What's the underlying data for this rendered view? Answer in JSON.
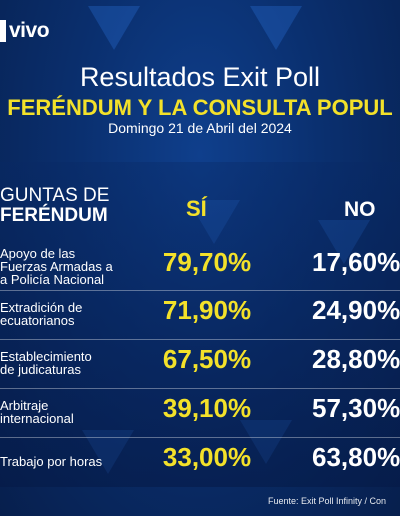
{
  "brand": {
    "logo_text": "vivo"
  },
  "header": {
    "title": "Resultados Exit Poll",
    "subtitle": "FERÉNDUM Y LA CONSULTA POPUL",
    "date": "Domingo 21 de Abril del 2024"
  },
  "table": {
    "question_header_line1": "GUNTAS DE",
    "question_header_line2": "FERÉNDUM",
    "col_si": "SÍ",
    "col_no": "NO",
    "rows": [
      {
        "question_lines": [
          "Apoyo de las",
          "Fuerzas Armadas a",
          "a Policía Nacional"
        ],
        "si": "79,70%",
        "no": "17,60%"
      },
      {
        "question_lines": [
          "Extradición de",
          "ecuatorianos"
        ],
        "si": "71,90%",
        "no": "24,90%"
      },
      {
        "question_lines": [
          "Establecimiento",
          "de judicaturas"
        ],
        "si": "67,50%",
        "no": "28,80%"
      },
      {
        "question_lines": [
          "Arbitraje",
          "internacional"
        ],
        "si": "39,10%",
        "no": "57,30%"
      },
      {
        "question_lines": [
          "Trabajo por horas"
        ],
        "si": "33,00%",
        "no": "63,80%"
      }
    ]
  },
  "footer": {
    "source": "Fuente: Exit Poll Infinity / Con"
  },
  "colors": {
    "accent_yellow": "#f3e12a",
    "background_blue": "#0a2f6e"
  }
}
